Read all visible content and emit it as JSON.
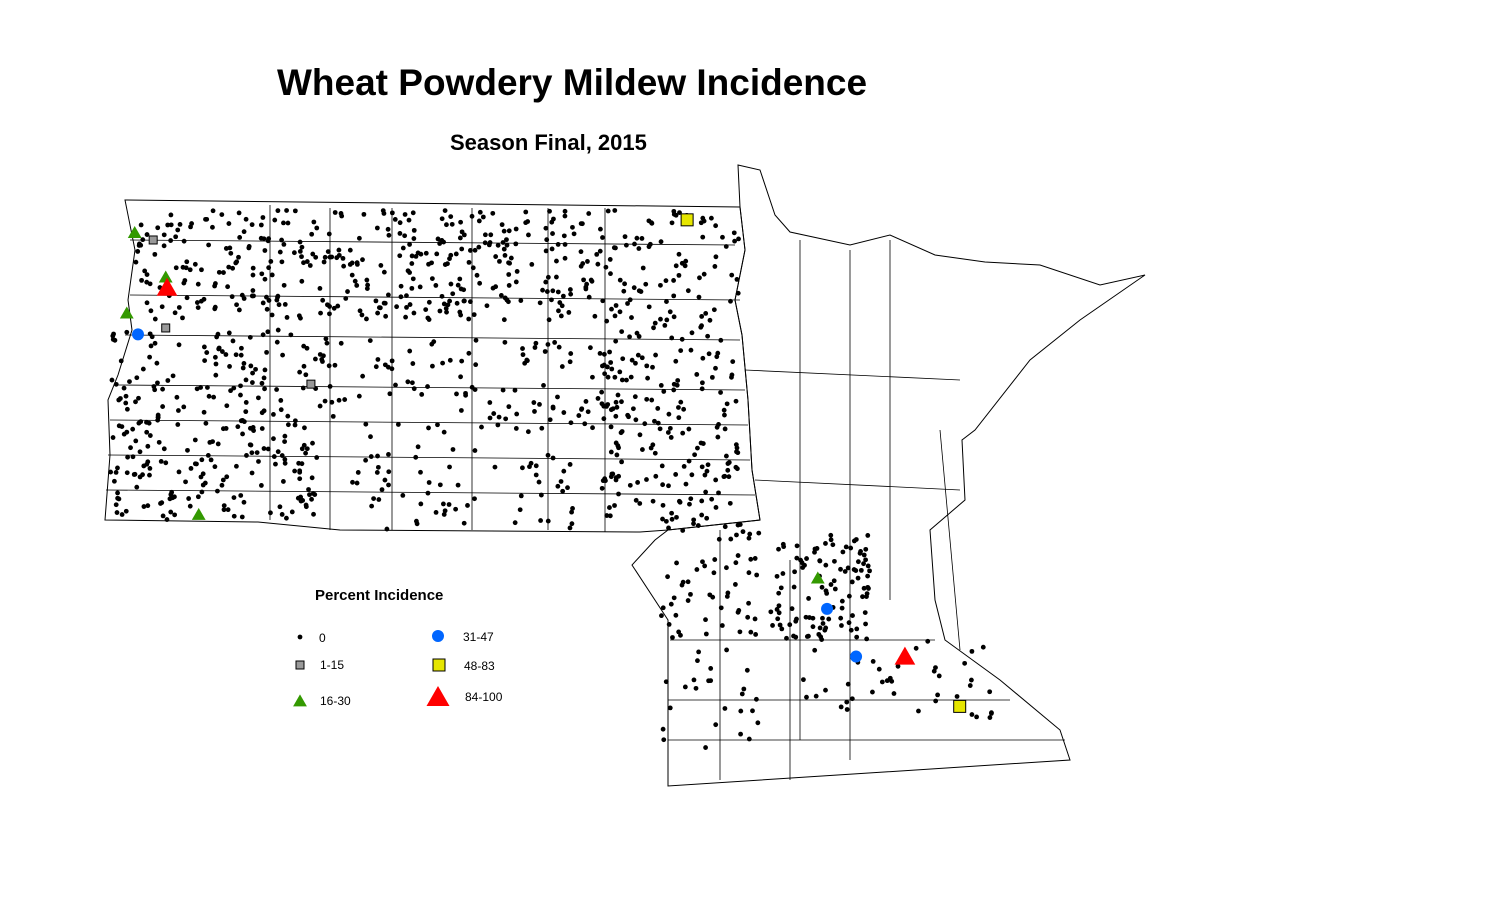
{
  "title": "Wheat Powdery Mildew Incidence",
  "subtitle": "Season Final, 2015",
  "legend": {
    "title": "Percent Incidence",
    "classes": [
      {
        "label": "0",
        "symbol": "dot",
        "color": "#000000"
      },
      {
        "label": "1-15",
        "symbol": "square",
        "color": "#999999"
      },
      {
        "label": "16-30",
        "symbol": "triangle",
        "color": "#339900"
      },
      {
        "label": "31-47",
        "symbol": "circle",
        "color": "#0066ff"
      },
      {
        "label": "48-83",
        "symbol": "square",
        "color": "#e6e600"
      },
      {
        "label": "84-100",
        "symbol": "triangle",
        "color": "#ff0000"
      }
    ]
  },
  "observations": [
    {
      "lon": -103.85,
      "lat": 48.74,
      "class": "16-30"
    },
    {
      "lon": -103.57,
      "lat": 48.67,
      "class": "1-15"
    },
    {
      "lon": -103.38,
      "lat": 48.32,
      "class": "16-30"
    },
    {
      "lon": -103.36,
      "lat": 48.22,
      "class": "84-100"
    },
    {
      "lon": -103.97,
      "lat": 47.98,
      "class": "16-30"
    },
    {
      "lon": -103.38,
      "lat": 47.84,
      "class": "1-15"
    },
    {
      "lon": -103.8,
      "lat": 47.78,
      "class": "31-47"
    },
    {
      "lon": -101.18,
      "lat": 47.31,
      "class": "1-15"
    },
    {
      "lon": -102.88,
      "lat": 46.08,
      "class": "16-30"
    },
    {
      "lon": -95.48,
      "lat": 48.86,
      "class": "48-83"
    },
    {
      "lon": -93.5,
      "lat": 45.48,
      "class": "16-30"
    },
    {
      "lon": -93.36,
      "lat": 45.19,
      "class": "31-47"
    },
    {
      "lon": -92.92,
      "lat": 44.74,
      "class": "31-47"
    },
    {
      "lon": -92.18,
      "lat": 44.74,
      "class": "84-100"
    },
    {
      "lon": -91.35,
      "lat": 44.27,
      "class": "48-83"
    }
  ]
}
